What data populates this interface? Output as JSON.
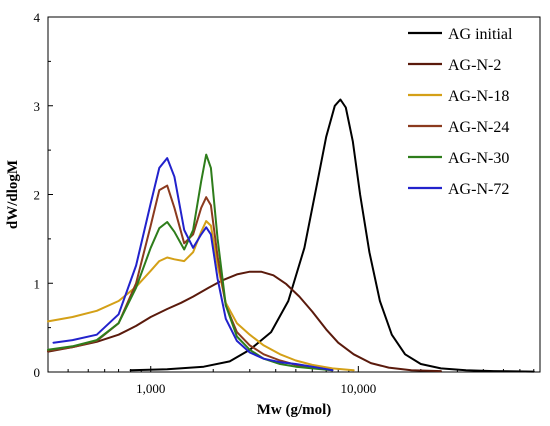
{
  "chart_data": {
    "type": "line",
    "xlabel": "Mw (g/mol)",
    "ylabel": "dW/dlogM",
    "x_scale": "log",
    "xlim": [
      320,
      75000
    ],
    "ylim": [
      0,
      4
    ],
    "x_ticks": [
      1000,
      10000
    ],
    "x_tick_labels": [
      "1,000",
      "10,000"
    ],
    "y_ticks": [
      0,
      1,
      2,
      3,
      4
    ],
    "y_tick_labels": [
      "0",
      "1",
      "2",
      "3",
      "4"
    ],
    "grid": false,
    "legend_position": "top-right",
    "series": [
      {
        "name": "AG initial",
        "color": "#000000",
        "points": [
          [
            800,
            0.02
          ],
          [
            1200,
            0.03
          ],
          [
            1800,
            0.06
          ],
          [
            2400,
            0.12
          ],
          [
            3000,
            0.25
          ],
          [
            3800,
            0.45
          ],
          [
            4600,
            0.8
          ],
          [
            5500,
            1.4
          ],
          [
            6300,
            2.1
          ],
          [
            7000,
            2.65
          ],
          [
            7700,
            3.0
          ],
          [
            8200,
            3.07
          ],
          [
            8700,
            2.98
          ],
          [
            9400,
            2.6
          ],
          [
            10200,
            2.0
          ],
          [
            11300,
            1.35
          ],
          [
            12700,
            0.8
          ],
          [
            14500,
            0.42
          ],
          [
            16800,
            0.2
          ],
          [
            20000,
            0.09
          ],
          [
            25000,
            0.04
          ],
          [
            33000,
            0.02
          ],
          [
            45000,
            0.01
          ],
          [
            70000,
            0.005
          ]
        ]
      },
      {
        "name": "AG-N-2",
        "color": "#5a1a0c",
        "points": [
          [
            320,
            0.23
          ],
          [
            420,
            0.28
          ],
          [
            550,
            0.34
          ],
          [
            700,
            0.42
          ],
          [
            850,
            0.52
          ],
          [
            1000,
            0.62
          ],
          [
            1200,
            0.71
          ],
          [
            1400,
            0.78
          ],
          [
            1600,
            0.85
          ],
          [
            1900,
            0.95
          ],
          [
            2200,
            1.03
          ],
          [
            2600,
            1.1
          ],
          [
            3000,
            1.13
          ],
          [
            3400,
            1.13
          ],
          [
            3900,
            1.09
          ],
          [
            4500,
            0.99
          ],
          [
            5200,
            0.85
          ],
          [
            6000,
            0.68
          ],
          [
            7000,
            0.48
          ],
          [
            8000,
            0.33
          ],
          [
            9500,
            0.2
          ],
          [
            11500,
            0.1
          ],
          [
            14000,
            0.05
          ],
          [
            18000,
            0.02
          ],
          [
            25000,
            0.01
          ]
        ]
      },
      {
        "name": "AG-N-18",
        "color": "#d4a017",
        "points": [
          [
            320,
            0.57
          ],
          [
            420,
            0.62
          ],
          [
            550,
            0.69
          ],
          [
            700,
            0.8
          ],
          [
            850,
            0.96
          ],
          [
            1000,
            1.14
          ],
          [
            1100,
            1.25
          ],
          [
            1200,
            1.29
          ],
          [
            1300,
            1.27
          ],
          [
            1450,
            1.25
          ],
          [
            1600,
            1.35
          ],
          [
            1750,
            1.58
          ],
          [
            1850,
            1.7
          ],
          [
            1950,
            1.65
          ],
          [
            2100,
            1.2
          ],
          [
            2300,
            0.78
          ],
          [
            2600,
            0.55
          ],
          [
            3000,
            0.42
          ],
          [
            3500,
            0.3
          ],
          [
            4200,
            0.2
          ],
          [
            5000,
            0.13
          ],
          [
            6000,
            0.08
          ],
          [
            7500,
            0.04
          ],
          [
            9500,
            0.02
          ]
        ]
      },
      {
        "name": "AG-N-24",
        "color": "#8b3a1e",
        "points": [
          [
            320,
            0.24
          ],
          [
            420,
            0.28
          ],
          [
            550,
            0.35
          ],
          [
            700,
            0.55
          ],
          [
            850,
            1.0
          ],
          [
            1000,
            1.65
          ],
          [
            1100,
            2.05
          ],
          [
            1200,
            2.1
          ],
          [
            1300,
            1.85
          ],
          [
            1450,
            1.45
          ],
          [
            1600,
            1.55
          ],
          [
            1750,
            1.85
          ],
          [
            1850,
            1.97
          ],
          [
            1950,
            1.88
          ],
          [
            2100,
            1.3
          ],
          [
            2300,
            0.75
          ],
          [
            2600,
            0.45
          ],
          [
            3000,
            0.3
          ],
          [
            3500,
            0.2
          ],
          [
            4200,
            0.13
          ],
          [
            5000,
            0.08
          ],
          [
            6000,
            0.05
          ],
          [
            7500,
            0.02
          ]
        ]
      },
      {
        "name": "AG-N-30",
        "color": "#2e7d1b",
        "points": [
          [
            320,
            0.25
          ],
          [
            420,
            0.29
          ],
          [
            550,
            0.36
          ],
          [
            700,
            0.55
          ],
          [
            850,
            0.95
          ],
          [
            1000,
            1.4
          ],
          [
            1100,
            1.62
          ],
          [
            1200,
            1.69
          ],
          [
            1300,
            1.58
          ],
          [
            1450,
            1.38
          ],
          [
            1600,
            1.6
          ],
          [
            1750,
            2.15
          ],
          [
            1850,
            2.45
          ],
          [
            1950,
            2.3
          ],
          [
            2100,
            1.5
          ],
          [
            2300,
            0.75
          ],
          [
            2600,
            0.4
          ],
          [
            3000,
            0.25
          ],
          [
            3500,
            0.15
          ],
          [
            4200,
            0.09
          ],
          [
            5000,
            0.06
          ],
          [
            6000,
            0.04
          ],
          [
            7500,
            0.02
          ]
        ]
      },
      {
        "name": "AG-N-72",
        "color": "#2222cc",
        "points": [
          [
            340,
            0.33
          ],
          [
            420,
            0.36
          ],
          [
            550,
            0.42
          ],
          [
            700,
            0.65
          ],
          [
            850,
            1.2
          ],
          [
            1000,
            1.9
          ],
          [
            1100,
            2.3
          ],
          [
            1200,
            2.41
          ],
          [
            1300,
            2.2
          ],
          [
            1450,
            1.6
          ],
          [
            1600,
            1.4
          ],
          [
            1750,
            1.55
          ],
          [
            1850,
            1.63
          ],
          [
            1950,
            1.55
          ],
          [
            2100,
            1.05
          ],
          [
            2300,
            0.6
          ],
          [
            2600,
            0.35
          ],
          [
            3000,
            0.22
          ],
          [
            3500,
            0.15
          ],
          [
            4200,
            0.11
          ],
          [
            5000,
            0.09
          ],
          [
            6000,
            0.06
          ],
          [
            7500,
            0.02
          ]
        ]
      }
    ]
  }
}
